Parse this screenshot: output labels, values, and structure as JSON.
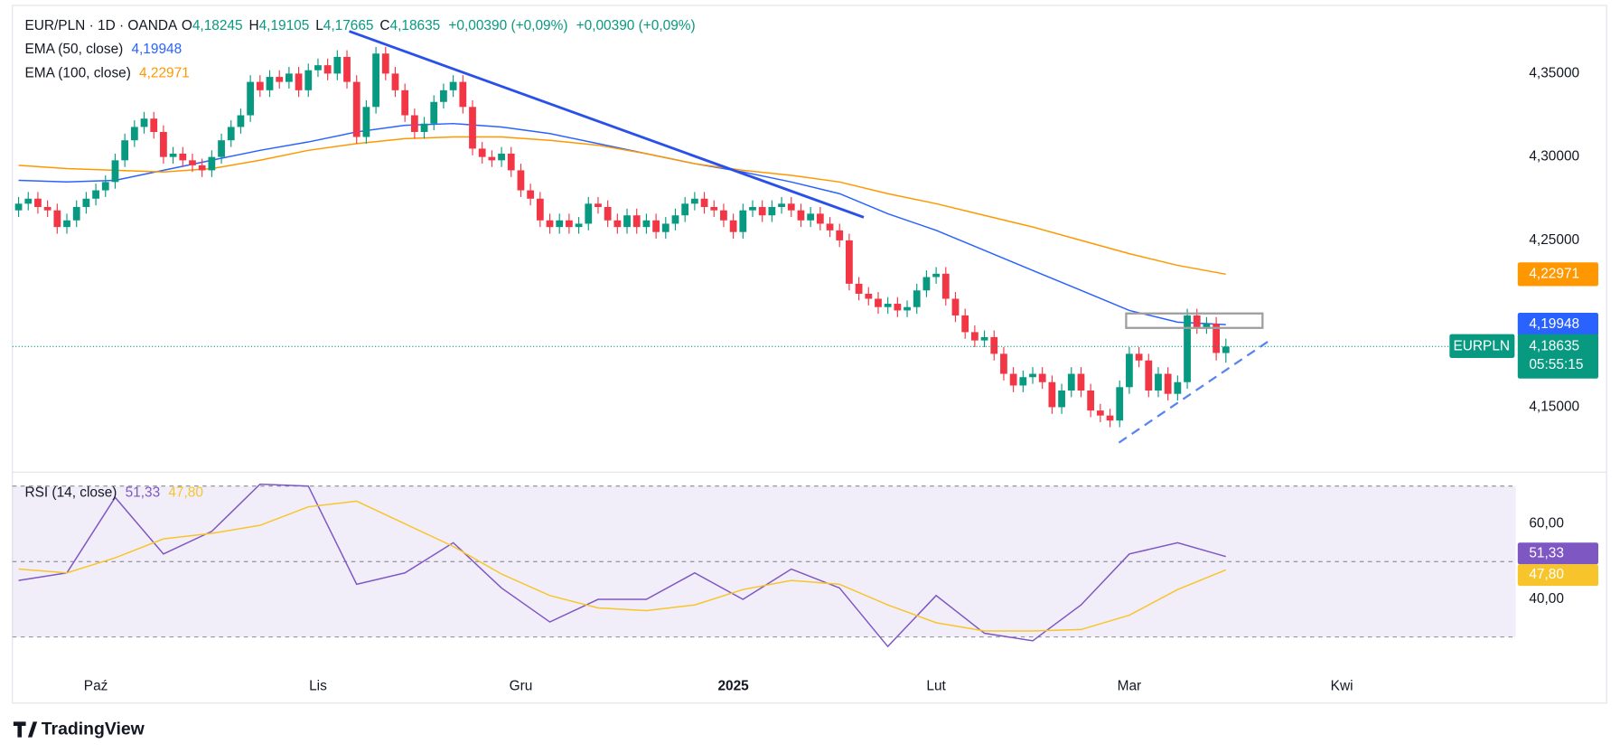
{
  "chart_data": [
    {
      "type": "candlestick",
      "title": "EUR/PLN · 1D · OANDA",
      "ohlc": [
        {
          "key": "O",
          "label": "4,18245"
        },
        {
          "key": "H",
          "label": "4,19105"
        },
        {
          "key": "L",
          "label": "4,17665"
        },
        {
          "key": "C",
          "label": "4,18635"
        }
      ],
      "change_labels": [
        "+0,00390 (+0,09%)",
        "+0,00390 (+0,09%)"
      ],
      "symbol_badge": "EURPLN",
      "last_price_label": "4,18635",
      "countdown": "05:55:15",
      "up_color": "#089981",
      "down_color": "#f23645",
      "xlim": [
        -0.64,
        155
      ],
      "xticks": [
        {
          "value": 8,
          "label": "Paź"
        },
        {
          "value": 31,
          "label": "Lis"
        },
        {
          "value": 52,
          "label": "Gru"
        },
        {
          "value": 74,
          "label": "2025"
        },
        {
          "value": 95,
          "label": "Lut"
        },
        {
          "value": 115,
          "label": "Mar"
        },
        {
          "value": 137,
          "label": "Kwi"
        }
      ],
      "ylim": [
        4.112,
        4.389
      ],
      "yticks": [
        {
          "value": 4.15,
          "label": "4,15000"
        },
        {
          "value": 4.25,
          "label": "4,25000"
        },
        {
          "value": 4.3,
          "label": "4,30000"
        },
        {
          "value": 4.35,
          "label": "4,35000"
        }
      ],
      "grid": false,
      "candles": [
        [
          4.268,
          4.276,
          4.264,
          4.272
        ],
        [
          4.272,
          4.279,
          4.268,
          4.275
        ],
        [
          4.275,
          4.279,
          4.266,
          4.27
        ],
        [
          4.27,
          4.274,
          4.264,
          4.268
        ],
        [
          4.268,
          4.272,
          4.254,
          4.258
        ],
        [
          4.258,
          4.266,
          4.254,
          4.262
        ],
        [
          4.262,
          4.274,
          4.258,
          4.27
        ],
        [
          4.27,
          4.279,
          4.266,
          4.275
        ],
        [
          4.275,
          4.284,
          4.271,
          4.28
        ],
        [
          4.28,
          4.289,
          4.276,
          4.285
        ],
        [
          4.285,
          4.302,
          4.281,
          4.298
        ],
        [
          4.298,
          4.314,
          4.294,
          4.31
        ],
        [
          4.31,
          4.322,
          4.306,
          4.318
        ],
        [
          4.318,
          4.327,
          4.314,
          4.323
        ],
        [
          4.323,
          4.327,
          4.311,
          4.315
        ],
        [
          4.315,
          4.319,
          4.296,
          4.3
        ],
        [
          4.3,
          4.306,
          4.296,
          4.302
        ],
        [
          4.302,
          4.306,
          4.294,
          4.298
        ],
        [
          4.298,
          4.302,
          4.291,
          4.295
        ],
        [
          4.295,
          4.299,
          4.288,
          4.292
        ],
        [
          4.292,
          4.304,
          4.288,
          4.3
        ],
        [
          4.3,
          4.314,
          4.296,
          4.31
        ],
        [
          4.31,
          4.322,
          4.306,
          4.318
        ],
        [
          4.318,
          4.329,
          4.314,
          4.325
        ],
        [
          4.325,
          4.349,
          4.321,
          4.345
        ],
        [
          4.345,
          4.349,
          4.336,
          4.34
        ],
        [
          4.34,
          4.352,
          4.336,
          4.348
        ],
        [
          4.348,
          4.352,
          4.341,
          4.345
        ],
        [
          4.345,
          4.354,
          4.341,
          4.35
        ],
        [
          4.35,
          4.354,
          4.336,
          4.34
        ],
        [
          4.34,
          4.356,
          4.336,
          4.352
        ],
        [
          4.352,
          4.359,
          4.348,
          4.355
        ],
        [
          4.355,
          4.359,
          4.346,
          4.35
        ],
        [
          4.35,
          4.364,
          4.346,
          4.36
        ],
        [
          4.36,
          4.364,
          4.341,
          4.345
        ],
        [
          4.345,
          4.349,
          4.308,
          4.312
        ],
        [
          4.312,
          4.334,
          4.308,
          4.33
        ],
        [
          4.33,
          4.366,
          4.326,
          4.362
        ],
        [
          4.362,
          4.366,
          4.346,
          4.35
        ],
        [
          4.35,
          4.354,
          4.336,
          4.34
        ],
        [
          4.34,
          4.344,
          4.321,
          4.325
        ],
        [
          4.325,
          4.329,
          4.311,
          4.315
        ],
        [
          4.315,
          4.324,
          4.311,
          4.32
        ],
        [
          4.32,
          4.337,
          4.316,
          4.333
        ],
        [
          4.333,
          4.344,
          4.329,
          4.34
        ],
        [
          4.34,
          4.349,
          4.336,
          4.345
        ],
        [
          4.345,
          4.349,
          4.326,
          4.33
        ],
        [
          4.33,
          4.334,
          4.301,
          4.305
        ],
        [
          4.305,
          4.309,
          4.296,
          4.3
        ],
        [
          4.3,
          4.304,
          4.294,
          4.298
        ],
        [
          4.298,
          4.306,
          4.294,
          4.302
        ],
        [
          4.302,
          4.306,
          4.288,
          4.292
        ],
        [
          4.292,
          4.296,
          4.276,
          4.28
        ],
        [
          4.28,
          4.284,
          4.271,
          4.275
        ],
        [
          4.275,
          4.279,
          4.258,
          4.262
        ],
        [
          4.262,
          4.266,
          4.254,
          4.258
        ],
        [
          4.258,
          4.266,
          4.254,
          4.262
        ],
        [
          4.262,
          4.266,
          4.254,
          4.258
        ],
        [
          4.258,
          4.264,
          4.254,
          4.26
        ],
        [
          4.26,
          4.276,
          4.256,
          4.272
        ],
        [
          4.272,
          4.276,
          4.266,
          4.27
        ],
        [
          4.27,
          4.274,
          4.258,
          4.262
        ],
        [
          4.262,
          4.266,
          4.254,
          4.258
        ],
        [
          4.258,
          4.269,
          4.254,
          4.265
        ],
        [
          4.265,
          4.269,
          4.254,
          4.258
        ],
        [
          4.258,
          4.266,
          4.254,
          4.262
        ],
        [
          4.262,
          4.266,
          4.251,
          4.255
        ],
        [
          4.255,
          4.264,
          4.251,
          4.26
        ],
        [
          4.26,
          4.269,
          4.256,
          4.265
        ],
        [
          4.265,
          4.276,
          4.261,
          4.272
        ],
        [
          4.272,
          4.279,
          4.268,
          4.275
        ],
        [
          4.275,
          4.279,
          4.266,
          4.27
        ],
        [
          4.27,
          4.274,
          4.264,
          4.268
        ],
        [
          4.268,
          4.272,
          4.258,
          4.262
        ],
        [
          4.262,
          4.266,
          4.251,
          4.255
        ],
        [
          4.255,
          4.272,
          4.251,
          4.268
        ],
        [
          4.268,
          4.274,
          4.264,
          4.27
        ],
        [
          4.27,
          4.274,
          4.261,
          4.265
        ],
        [
          4.265,
          4.274,
          4.261,
          4.27
        ],
        [
          4.27,
          4.276,
          4.266,
          4.272
        ],
        [
          4.272,
          4.276,
          4.264,
          4.268
        ],
        [
          4.268,
          4.272,
          4.258,
          4.262
        ],
        [
          4.262,
          4.27,
          4.258,
          4.266
        ],
        [
          4.266,
          4.27,
          4.256,
          4.26
        ],
        [
          4.26,
          4.264,
          4.252,
          4.256
        ],
        [
          4.256,
          4.26,
          4.246,
          4.25
        ],
        [
          4.25,
          4.254,
          4.22,
          4.224
        ],
        [
          4.224,
          4.228,
          4.214,
          4.218
        ],
        [
          4.218,
          4.222,
          4.211,
          4.215
        ],
        [
          4.215,
          4.219,
          4.206,
          4.21
        ],
        [
          4.21,
          4.216,
          4.206,
          4.212
        ],
        [
          4.212,
          4.216,
          4.204,
          4.208
        ],
        [
          4.208,
          4.214,
          4.204,
          4.21
        ],
        [
          4.21,
          4.224,
          4.206,
          4.22
        ],
        [
          4.22,
          4.232,
          4.216,
          4.228
        ],
        [
          4.228,
          4.234,
          4.224,
          4.23
        ],
        [
          4.23,
          4.234,
          4.211,
          4.215
        ],
        [
          4.215,
          4.219,
          4.201,
          4.205
        ],
        [
          4.205,
          4.209,
          4.191,
          4.195
        ],
        [
          4.195,
          4.199,
          4.186,
          4.19
        ],
        [
          4.19,
          4.196,
          4.186,
          4.192
        ],
        [
          4.192,
          4.196,
          4.178,
          4.182
        ],
        [
          4.182,
          4.186,
          4.166,
          4.17
        ],
        [
          4.17,
          4.174,
          4.159,
          4.163
        ],
        [
          4.163,
          4.172,
          4.159,
          4.168
        ],
        [
          4.168,
          4.174,
          4.164,
          4.17
        ],
        [
          4.17,
          4.174,
          4.161,
          4.165
        ],
        [
          4.165,
          4.169,
          4.146,
          4.15
        ],
        [
          4.15,
          4.164,
          4.146,
          4.16
        ],
        [
          4.16,
          4.174,
          4.156,
          4.17
        ],
        [
          4.17,
          4.174,
          4.156,
          4.16
        ],
        [
          4.16,
          4.164,
          4.144,
          4.148
        ],
        [
          4.148,
          4.152,
          4.141,
          4.145
        ],
        [
          4.145,
          4.149,
          4.138,
          4.142
        ],
        [
          4.142,
          4.166,
          4.138,
          4.162
        ],
        [
          4.162,
          4.186,
          4.158,
          4.182
        ],
        [
          4.182,
          4.186,
          4.174,
          4.178
        ],
        [
          4.178,
          4.182,
          4.156,
          4.16
        ],
        [
          4.16,
          4.174,
          4.156,
          4.17
        ],
        [
          4.17,
          4.174,
          4.154,
          4.158
        ],
        [
          4.158,
          4.169,
          4.154,
          4.165
        ],
        [
          4.165,
          4.209,
          4.161,
          4.205
        ],
        [
          4.205,
          4.209,
          4.194,
          4.198
        ],
        [
          4.198,
          4.204,
          4.194,
          4.2
        ],
        [
          4.2,
          4.204,
          4.178,
          4.1825
        ],
        [
          4.18245,
          4.19105,
          4.17665,
          4.18635
        ]
      ],
      "series": [
        {
          "name": "EMA (50, close)",
          "color": "#2962ff",
          "last_value_label": "4,19948",
          "x": [
            0,
            5,
            10,
            15,
            20,
            25,
            30,
            35,
            40,
            45,
            50,
            55,
            60,
            65,
            70,
            75,
            80,
            85,
            90,
            95,
            100,
            105,
            110,
            115,
            120,
            125
          ],
          "values": [
            4.286,
            4.285,
            4.286,
            4.292,
            4.298,
            4.304,
            4.309,
            4.315,
            4.319,
            4.32,
            4.318,
            4.314,
            4.308,
            4.302,
            4.296,
            4.291,
            4.285,
            4.278,
            4.266,
            4.256,
            4.244,
            4.232,
            4.22,
            4.208,
            4.201,
            4.19948
          ]
        },
        {
          "name": "EMA (100, close)",
          "color": "#ff9800",
          "last_value_label": "4,22971",
          "x": [
            0,
            5,
            10,
            15,
            20,
            25,
            30,
            35,
            40,
            45,
            50,
            55,
            60,
            65,
            70,
            75,
            80,
            85,
            90,
            95,
            100,
            105,
            110,
            115,
            120,
            125
          ],
          "values": [
            4.295,
            4.293,
            4.292,
            4.291,
            4.293,
            4.298,
            4.304,
            4.308,
            4.311,
            4.312,
            4.312,
            4.31,
            4.307,
            4.302,
            4.296,
            4.292,
            4.289,
            4.285,
            4.278,
            4.272,
            4.265,
            4.258,
            4.25,
            4.242,
            4.235,
            4.22971
          ]
        }
      ]
    },
    {
      "type": "line",
      "title": "RSI (14, close)",
      "ylim": [
        20.7,
        73.3
      ],
      "yticks": [
        {
          "value": 40,
          "label": "40,00"
        },
        {
          "value": 60,
          "label": "60,00"
        }
      ],
      "bands": [
        30,
        50,
        70
      ],
      "band_color": "#7e57c2",
      "series": [
        {
          "color": "#7e57c2",
          "last_value_label": "51,33",
          "x": [
            0,
            5,
            10,
            15,
            20,
            25,
            30,
            35,
            40,
            45,
            50,
            55,
            60,
            65,
            70,
            75,
            80,
            85,
            90,
            95,
            100,
            105,
            110,
            115,
            120,
            125
          ],
          "values": [
            45,
            47,
            67,
            52,
            58,
            70.5,
            70,
            44,
            47,
            55,
            43,
            34,
            40,
            40,
            47,
            40,
            48,
            43,
            27.5,
            41,
            31,
            29,
            38.5,
            52,
            55,
            51.33
          ]
        },
        {
          "color": "#f7c52b",
          "last_value_label": "47,80",
          "x": [
            0,
            5,
            10,
            15,
            20,
            25,
            30,
            35,
            40,
            45,
            50,
            55,
            60,
            65,
            70,
            75,
            80,
            85,
            90,
            95,
            100,
            105,
            110,
            115,
            120,
            125
          ],
          "values": [
            48,
            47,
            51,
            56,
            57.5,
            59.6,
            64.5,
            66,
            60,
            54,
            46.7,
            41,
            37.7,
            37,
            38.5,
            42.6,
            45,
            44,
            38.5,
            33.8,
            31.6,
            31.6,
            32,
            35.8,
            42.6,
            47.8
          ]
        }
      ]
    }
  ],
  "footer": "TradingView"
}
